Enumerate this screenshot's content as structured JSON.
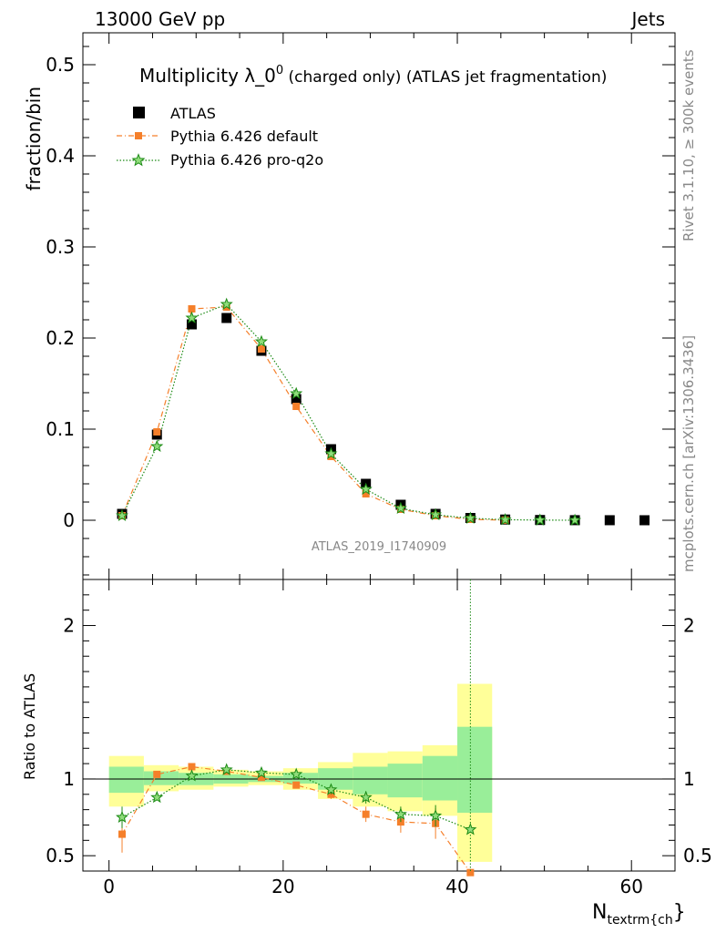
{
  "header": {
    "left": "13000 GeV pp",
    "right": "Jets"
  },
  "side_labels": {
    "rivet": "Rivet 3.1.10, ≥ 300k events",
    "mcplots": "mcplots.cern.ch [arXiv:1306.3436]"
  },
  "chart_data": {
    "type": "line",
    "title_main": "Multiplicity λ_0",
    "title_sup": "0",
    "title_rest": " (charged only) (ATLAS jet fragmentation)",
    "watermark": "ATLAS_2019_I1740909",
    "xlabel_main": "N",
    "xlabel_sub": "textrm{ch",
    "xlabel_close": "}",
    "ylabel_top": "fraction/bin",
    "ylabel_bottom": "Ratio to ATLAS",
    "xlim": [
      -3,
      65
    ],
    "ylim_top": [
      -0.065,
      0.535
    ],
    "ylim_bottom": [
      0.4,
      2.3
    ],
    "x_ticks": [
      "0",
      "20",
      "40",
      "60"
    ],
    "y_ticks_top": [
      "0",
      "0.1",
      "0.2",
      "0.3",
      "0.4",
      "0.5"
    ],
    "y_ticks_bottom": [
      "0.5",
      "1",
      "2"
    ],
    "legend": [
      {
        "label": "ATLAS",
        "color": "#000000",
        "marker": "square"
      },
      {
        "label": "Pythia 6.426 default",
        "color": "#f57f2a",
        "marker": "square-small"
      },
      {
        "label": "Pythia 6.426 pro-q2o",
        "color": "#1b8a14",
        "marker": "star"
      }
    ],
    "series": [
      {
        "name": "ATLAS",
        "x": [
          1.5,
          5.5,
          9.5,
          13.5,
          17.5,
          21.5,
          25.5,
          29.5,
          33.5,
          37.5,
          41.5,
          45.5,
          49.5,
          53.5,
          57.5,
          61.5
        ],
        "values": [
          0.007,
          0.094,
          0.215,
          0.222,
          0.186,
          0.133,
          0.078,
          0.04,
          0.017,
          0.007,
          0.0025,
          0.0008,
          0.0003,
          0.0001,
          5e-05,
          2e-05
        ]
      },
      {
        "name": "Pythia 6.426 default",
        "x": [
          1.5,
          5.5,
          9.5,
          13.5,
          17.5,
          21.5,
          25.5,
          29.5,
          33.5,
          37.5,
          41.5,
          45.5
        ],
        "values": [
          0.005,
          0.097,
          0.232,
          0.234,
          0.188,
          0.125,
          0.07,
          0.029,
          0.012,
          0.005,
          0.001,
          0.0001
        ],
        "ratio": [
          0.64,
          1.03,
          1.08,
          1.05,
          1.01,
          0.96,
          0.9,
          0.77,
          0.72,
          0.71,
          0.39
        ],
        "ratio_err": [
          0.12,
          0.02,
          0.01,
          0.01,
          0.01,
          0.02,
          0.03,
          0.05,
          0.07,
          0.1,
          0.0
        ]
      },
      {
        "name": "Pythia 6.426 pro-q2o",
        "x": [
          1.5,
          5.5,
          9.5,
          13.5,
          17.5,
          21.5,
          25.5,
          29.5,
          33.5,
          37.5,
          41.5,
          45.5,
          49.5,
          53.5
        ],
        "values": [
          0.005,
          0.081,
          0.222,
          0.237,
          0.196,
          0.139,
          0.073,
          0.034,
          0.013,
          0.006,
          0.0022,
          0.0006,
          0.0002,
          5e-05
        ],
        "ratio": [
          0.75,
          0.88,
          1.02,
          1.06,
          1.04,
          1.03,
          0.93,
          0.88,
          0.77,
          0.76,
          0.67
        ],
        "ratio_err": [
          0.07,
          0.02,
          0.01,
          0.01,
          0.01,
          0.02,
          0.03,
          0.04,
          0.05,
          0.07,
          3.0
        ]
      }
    ],
    "ratio_bands": {
      "bins": [
        [
          0,
          4
        ],
        [
          4,
          8
        ],
        [
          8,
          12
        ],
        [
          12,
          16
        ],
        [
          16,
          20
        ],
        [
          20,
          24
        ],
        [
          24,
          28
        ],
        [
          28,
          32
        ],
        [
          32,
          36
        ],
        [
          36,
          40
        ],
        [
          40,
          44
        ]
      ],
      "yellow": [
        [
          0.82,
          1.15
        ],
        [
          0.92,
          1.09
        ],
        [
          0.93,
          1.08
        ],
        [
          0.95,
          1.06
        ],
        [
          0.96,
          1.05
        ],
        [
          0.93,
          1.07
        ],
        [
          0.87,
          1.11
        ],
        [
          0.82,
          1.17
        ],
        [
          0.79,
          1.18
        ],
        [
          0.76,
          1.22
        ],
        [
          0.46,
          1.62
        ]
      ],
      "green": [
        [
          0.91,
          1.08
        ],
        [
          0.96,
          1.05
        ],
        [
          0.96,
          1.04
        ],
        [
          0.97,
          1.03
        ],
        [
          0.98,
          1.02
        ],
        [
          0.97,
          1.04
        ],
        [
          0.93,
          1.07
        ],
        [
          0.9,
          1.08
        ],
        [
          0.88,
          1.1
        ],
        [
          0.86,
          1.15
        ],
        [
          0.78,
          1.34
        ]
      ],
      "yellow_color": "#ffff99",
      "green_color": "#99ee99"
    }
  }
}
